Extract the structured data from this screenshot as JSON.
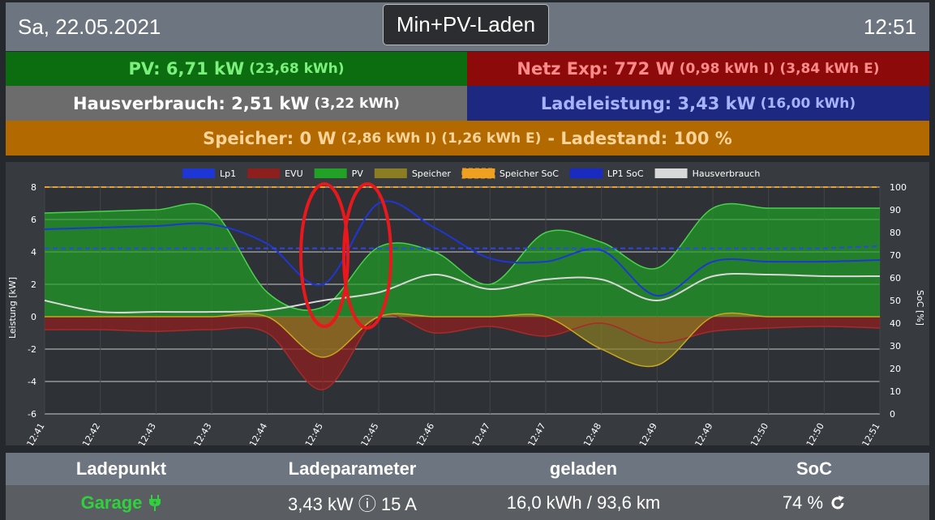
{
  "header": {
    "date": "Sa, 22.05.2021",
    "mode_button": "Min+PV-Laden",
    "time": "12:51"
  },
  "tiles": {
    "pv": {
      "main": "PV: 6,71 kW",
      "sub": "(23,68 kWh)"
    },
    "netz": {
      "main": "Netz Exp: 772 W",
      "sub": "(0,98 kWh I) (3,84 kWh E)"
    },
    "haus": {
      "main": "Hausverbrauch: 2,51 kW",
      "sub": "(3,22 kWh)"
    },
    "lade": {
      "main": "Ladeleistung: 3,43 kW",
      "sub": "(16,00 kWh)"
    },
    "speicher": {
      "main": "Speicher: 0 W",
      "sub": "(2,86 kWh I) (1,26 kWh E)",
      "tail": "- Ladestand: 100 %"
    }
  },
  "chart_data": {
    "type": "line",
    "ylabel": "Leistung [kW]",
    "y2label": "SoC [%]",
    "ylim": [
      -6,
      8
    ],
    "y2lim": [
      0,
      100
    ],
    "yticks": [
      "8",
      "6",
      "4",
      "2",
      "0",
      "-2",
      "-4",
      "-6"
    ],
    "y2ticks": [
      "100",
      "90",
      "80",
      "70",
      "60",
      "50",
      "40",
      "30",
      "20",
      "10",
      "0"
    ],
    "categories": [
      "12:41",
      "12:42",
      "12:43",
      "12:43",
      "12:44",
      "12:45",
      "12:45",
      "12:46",
      "12:47",
      "12:47",
      "12:48",
      "12:49",
      "12:49",
      "12:50",
      "12:50",
      "12:51"
    ],
    "grid": true,
    "legend_position": "top",
    "series": [
      {
        "name": "Lp1",
        "color": "#1f36d6",
        "values": [
          5.4,
          5.5,
          5.6,
          5.7,
          4.5,
          2.0,
          7.0,
          5.5,
          3.6,
          3.4,
          4.1,
          1.3,
          3.4,
          3.4,
          3.4,
          3.5
        ]
      },
      {
        "name": "EVU",
        "color": "#8e1f1f",
        "values": [
          -0.8,
          -0.8,
          -0.9,
          -0.8,
          -1.0,
          -4.5,
          0.0,
          -1.0,
          -0.6,
          -1.2,
          -0.4,
          -1.6,
          -0.9,
          -0.7,
          -0.6,
          -0.7
        ]
      },
      {
        "name": "PV",
        "color": "#21a125",
        "values": [
          6.4,
          6.5,
          6.6,
          6.6,
          1.5,
          0.6,
          4.3,
          4.0,
          2.0,
          5.2,
          4.6,
          3.0,
          6.7,
          6.7,
          6.7,
          6.7
        ]
      },
      {
        "name": "Speicher",
        "color": "#8a7d23",
        "values": [
          0,
          0,
          0,
          0,
          0,
          -2.5,
          0,
          0,
          0,
          0,
          -2,
          -3,
          0,
          0,
          0,
          0
        ]
      },
      {
        "name": "Speicher SoC",
        "color": "#f0a020",
        "values": [
          100,
          100,
          100,
          100,
          100,
          100,
          100,
          100,
          100,
          100,
          100,
          100,
          100,
          100,
          100,
          100
        ]
      },
      {
        "name": "LP1 SoC",
        "color": "#1a2bbf",
        "values": [
          73,
          73,
          73,
          73,
          73,
          73,
          73,
          73,
          73,
          73,
          73,
          73,
          73,
          73,
          73,
          74
        ]
      },
      {
        "name": "Hausverbrauch",
        "color": "#d8d8d8",
        "values": [
          1.0,
          0.3,
          0.3,
          0.3,
          0.4,
          1.0,
          1.5,
          2.6,
          1.7,
          2.3,
          2.3,
          1.0,
          2.5,
          2.6,
          2.5,
          2.5
        ]
      }
    ]
  },
  "bottom": {
    "headers": [
      "Ladepunkt",
      "Ladeparameter",
      "geladen",
      "SoC"
    ],
    "row": {
      "ladepunkt": "Garage",
      "plug_icon": "plug-icon",
      "parameter": "3,43 kW ⓘ 15 A",
      "geladen": "16,0 kWh / 93,6 km",
      "soc": "74 %",
      "refresh_icon": "refresh-icon"
    }
  },
  "colors": {
    "pv_tile": "#0b6d10",
    "netz_tile": "#8d0a0b",
    "haus_tile": "#6c6c6c",
    "lade_tile": "#1d2980",
    "speicher_tile": "#b26a00",
    "annotation": "#e8181c"
  }
}
